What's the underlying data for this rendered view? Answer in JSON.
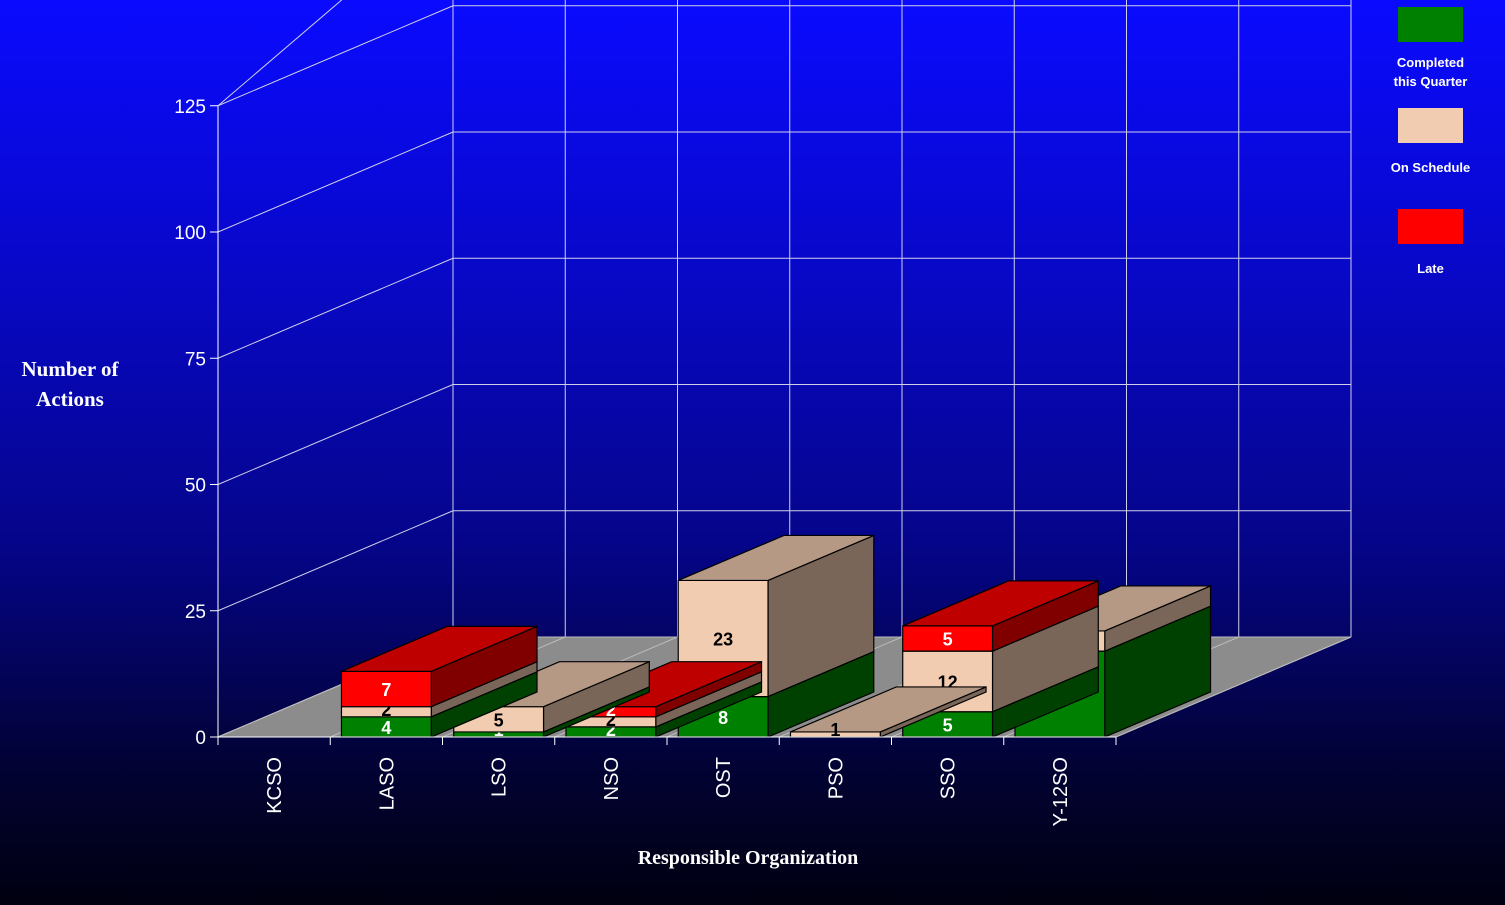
{
  "chart_data": {
    "type": "bar",
    "stacked": true,
    "three_d": true,
    "categories": [
      "KCSO",
      "LASO",
      "LSO",
      "NSO",
      "OST",
      "PSO",
      "SSO",
      "Y-12SO"
    ],
    "series": [
      {
        "name": "Completed\nthis Quarter",
        "color": "#008000",
        "values": [
          0,
          4,
          1,
          2,
          8,
          0,
          5,
          17
        ]
      },
      {
        "name": "On Schedule",
        "color": "#f2ccb0",
        "values": [
          0,
          2,
          5,
          2,
          23,
          1,
          12,
          4
        ]
      },
      {
        "name": "Late",
        "color": "#ff0000",
        "values": [
          0,
          7,
          0,
          2,
          0,
          0,
          5,
          0
        ]
      }
    ],
    "ylabel": "Number of\nActions",
    "xlabel": "Responsible Organization",
    "ylim": [
      0,
      125
    ],
    "yticks": [
      0,
      25,
      50,
      75,
      100,
      125
    ],
    "grid": true,
    "legend_position": "right"
  }
}
